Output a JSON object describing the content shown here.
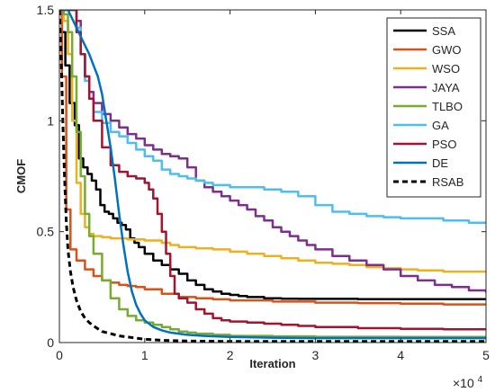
{
  "chart_data": {
    "type": "line",
    "xlabel": "Iteration",
    "ylabel": "CMOF",
    "x_multiplier_label": "×10",
    "x_multiplier_exponent": "4",
    "xlim": [
      0,
      50000
    ],
    "ylim": [
      0,
      1.5
    ],
    "x_ticks": [
      0,
      10000,
      20000,
      30000,
      40000,
      50000
    ],
    "x_tick_labels": [
      "0",
      "1",
      "2",
      "3",
      "4",
      "5"
    ],
    "y_ticks": [
      0,
      0.5,
      1,
      1.5
    ],
    "y_tick_labels": [
      "0",
      "0.5",
      "1",
      "1.5"
    ],
    "grid": false,
    "legend_position": "top-right",
    "series": [
      {
        "name": "SSA",
        "color": "#000000",
        "dash": "solid",
        "step": true,
        "x": [
          0,
          300,
          700,
          1200,
          1800,
          2300,
          2800,
          3300,
          3800,
          4300,
          4800,
          5300,
          5800,
          6300,
          6800,
          7300,
          7800,
          8300,
          8800,
          9300,
          10000,
          11000,
          12000,
          13000,
          14000,
          15000,
          16000,
          17000,
          18000,
          19000,
          20000,
          21000,
          22000,
          24000,
          26000,
          28000,
          30000,
          35000,
          40000,
          45000,
          50000
        ],
        "y": [
          1.5,
          1.4,
          1.25,
          1.08,
          0.98,
          0.83,
          0.79,
          0.76,
          0.73,
          0.69,
          0.62,
          0.59,
          0.58,
          0.56,
          0.54,
          0.53,
          0.51,
          0.47,
          0.45,
          0.43,
          0.4,
          0.37,
          0.35,
          0.33,
          0.31,
          0.28,
          0.26,
          0.24,
          0.23,
          0.22,
          0.215,
          0.21,
          0.205,
          0.2,
          0.198,
          0.197,
          0.197,
          0.196,
          0.196,
          0.196,
          0.196
        ]
      },
      {
        "name": "GWO",
        "color": "#d95319",
        "dash": "solid",
        "step": true,
        "x": [
          0,
          300,
          800,
          1300,
          2000,
          3000,
          4000,
          5000,
          6000,
          7000,
          8000,
          9000,
          10000,
          12000,
          14000,
          16000,
          18000,
          20000,
          25000,
          30000,
          35000,
          40000,
          45000,
          50000
        ],
        "y": [
          1.5,
          1.2,
          0.6,
          0.42,
          0.37,
          0.33,
          0.3,
          0.28,
          0.27,
          0.26,
          0.255,
          0.25,
          0.24,
          0.22,
          0.205,
          0.2,
          0.195,
          0.19,
          0.185,
          0.18,
          0.178,
          0.175,
          0.172,
          0.17
        ]
      },
      {
        "name": "WSO",
        "color": "#edb120",
        "dash": "solid",
        "step": true,
        "x": [
          0,
          500,
          1000,
          1500,
          2000,
          2500,
          3000,
          3500,
          4000,
          5000,
          6000,
          8000,
          10000,
          12000,
          13000,
          14000,
          16000,
          18000,
          20000,
          22000,
          24000,
          26000,
          28000,
          30000,
          32000,
          34000,
          36000,
          38000,
          40000,
          42000,
          45000,
          50000
        ],
        "y": [
          1.5,
          1.45,
          1.3,
          1.0,
          0.72,
          0.58,
          0.52,
          0.49,
          0.48,
          0.475,
          0.47,
          0.465,
          0.46,
          0.45,
          0.44,
          0.43,
          0.425,
          0.42,
          0.41,
          0.4,
          0.39,
          0.38,
          0.37,
          0.36,
          0.355,
          0.35,
          0.34,
          0.335,
          0.33,
          0.325,
          0.32,
          0.32
        ]
      },
      {
        "name": "JAYA",
        "color": "#7e2f8e",
        "dash": "solid",
        "step": true,
        "x": [
          0,
          1000,
          2000,
          2500,
          3000,
          3500,
          4000,
          5000,
          6000,
          7000,
          8000,
          9000,
          10000,
          11000,
          12000,
          13000,
          14000,
          15000,
          16000,
          17000,
          18000,
          19000,
          20000,
          21000,
          22000,
          23000,
          24000,
          25000,
          26000,
          27000,
          28000,
          29000,
          30000,
          32000,
          34000,
          36000,
          38000,
          40000,
          42000,
          44000,
          46000,
          48000,
          50000
        ],
        "y": [
          1.5,
          1.5,
          1.45,
          1.3,
          1.2,
          1.13,
          1.08,
          1.03,
          1.0,
          0.97,
          0.94,
          0.92,
          0.89,
          0.87,
          0.85,
          0.84,
          0.83,
          0.79,
          0.73,
          0.7,
          0.68,
          0.66,
          0.64,
          0.62,
          0.6,
          0.57,
          0.55,
          0.52,
          0.5,
          0.48,
          0.46,
          0.44,
          0.42,
          0.39,
          0.37,
          0.35,
          0.33,
          0.3,
          0.28,
          0.26,
          0.25,
          0.235,
          0.225
        ]
      },
      {
        "name": "TLBO",
        "color": "#77ac30",
        "dash": "solid",
        "step": true,
        "x": [
          0,
          500,
          1000,
          1500,
          2000,
          2500,
          3000,
          3500,
          4000,
          5000,
          6000,
          7000,
          8000,
          9000,
          10000,
          11000,
          12000,
          13000,
          14000,
          15000,
          16000,
          18000,
          20000,
          25000,
          30000,
          40000,
          50000
        ],
        "y": [
          1.5,
          1.48,
          1.4,
          1.2,
          0.95,
          0.75,
          0.58,
          0.48,
          0.4,
          0.28,
          0.2,
          0.15,
          0.12,
          0.1,
          0.09,
          0.08,
          0.07,
          0.06,
          0.05,
          0.045,
          0.04,
          0.035,
          0.03,
          0.028,
          0.026,
          0.025,
          0.024
        ]
      },
      {
        "name": "GA",
        "color": "#4dbeee",
        "dash": "solid",
        "step": true,
        "x": [
          0,
          1000,
          2000,
          2500,
          3000,
          3500,
          4000,
          5000,
          6000,
          7000,
          8000,
          9000,
          10000,
          11000,
          12000,
          13000,
          14000,
          15000,
          16000,
          17000,
          18000,
          19000,
          20000,
          22000,
          24000,
          26000,
          28000,
          30000,
          32000,
          34000,
          36000,
          38000,
          40000,
          42000,
          45000,
          48000,
          50000
        ],
        "y": [
          1.5,
          1.5,
          1.42,
          1.3,
          1.18,
          1.1,
          1.04,
          0.99,
          0.95,
          0.93,
          0.9,
          0.87,
          0.84,
          0.82,
          0.78,
          0.76,
          0.75,
          0.74,
          0.73,
          0.72,
          0.71,
          0.71,
          0.7,
          0.7,
          0.69,
          0.68,
          0.66,
          0.62,
          0.59,
          0.58,
          0.57,
          0.565,
          0.56,
          0.56,
          0.55,
          0.54,
          0.535
        ]
      },
      {
        "name": "PSO",
        "color": "#a2142f",
        "dash": "solid",
        "step": true,
        "x": [
          0,
          1000,
          2000,
          2500,
          3000,
          3500,
          4000,
          5000,
          6000,
          7000,
          8000,
          9000,
          10000,
          10500,
          11000,
          11500,
          12000,
          12500,
          13000,
          13500,
          14000,
          15000,
          16000,
          17000,
          18000,
          19000,
          20000,
          22000,
          24000,
          26000,
          28000,
          30000,
          35000,
          40000,
          45000,
          50000
        ],
        "y": [
          1.5,
          1.5,
          1.4,
          1.3,
          1.2,
          1.1,
          1.0,
          0.88,
          0.8,
          0.77,
          0.75,
          0.74,
          0.72,
          0.69,
          0.65,
          0.58,
          0.5,
          0.4,
          0.3,
          0.22,
          0.2,
          0.18,
          0.15,
          0.13,
          0.11,
          0.1,
          0.095,
          0.09,
          0.085,
          0.08,
          0.075,
          0.07,
          0.065,
          0.062,
          0.06,
          0.058
        ]
      },
      {
        "name": "DE",
        "color": "#0072bd",
        "dash": "solid",
        "step": false,
        "x": [
          0,
          1000,
          2000,
          2500,
          3000,
          3500,
          4000,
          4500,
          5000,
          5500,
          6000,
          6500,
          7000,
          7500,
          8000,
          8500,
          9000,
          9500,
          10000,
          11000,
          12000,
          13000,
          14000,
          15000,
          17000,
          20000,
          25000,
          30000,
          40000,
          50000
        ],
        "y": [
          1.5,
          1.5,
          1.42,
          1.38,
          1.34,
          1.3,
          1.25,
          1.2,
          1.12,
          1.0,
          0.88,
          0.74,
          0.58,
          0.44,
          0.32,
          0.23,
          0.17,
          0.13,
          0.1,
          0.07,
          0.055,
          0.045,
          0.04,
          0.035,
          0.03,
          0.025,
          0.022,
          0.02,
          0.02,
          0.02
        ]
      },
      {
        "name": "RSAB",
        "color": "#000000",
        "dash": "dashed",
        "step": false,
        "x": [
          0,
          200,
          400,
          600,
          800,
          1000,
          1300,
          1600,
          2000,
          2500,
          3000,
          3500,
          4000,
          5000,
          6000,
          7000,
          8000,
          9000,
          10000,
          12000,
          15000,
          20000,
          30000,
          40000,
          50000
        ],
        "y": [
          1.5,
          1.3,
          1.0,
          0.75,
          0.55,
          0.42,
          0.32,
          0.25,
          0.19,
          0.14,
          0.11,
          0.09,
          0.075,
          0.05,
          0.04,
          0.03,
          0.025,
          0.02,
          0.015,
          0.01,
          0.007,
          0.005,
          0.005,
          0.005,
          0.005
        ]
      }
    ]
  }
}
